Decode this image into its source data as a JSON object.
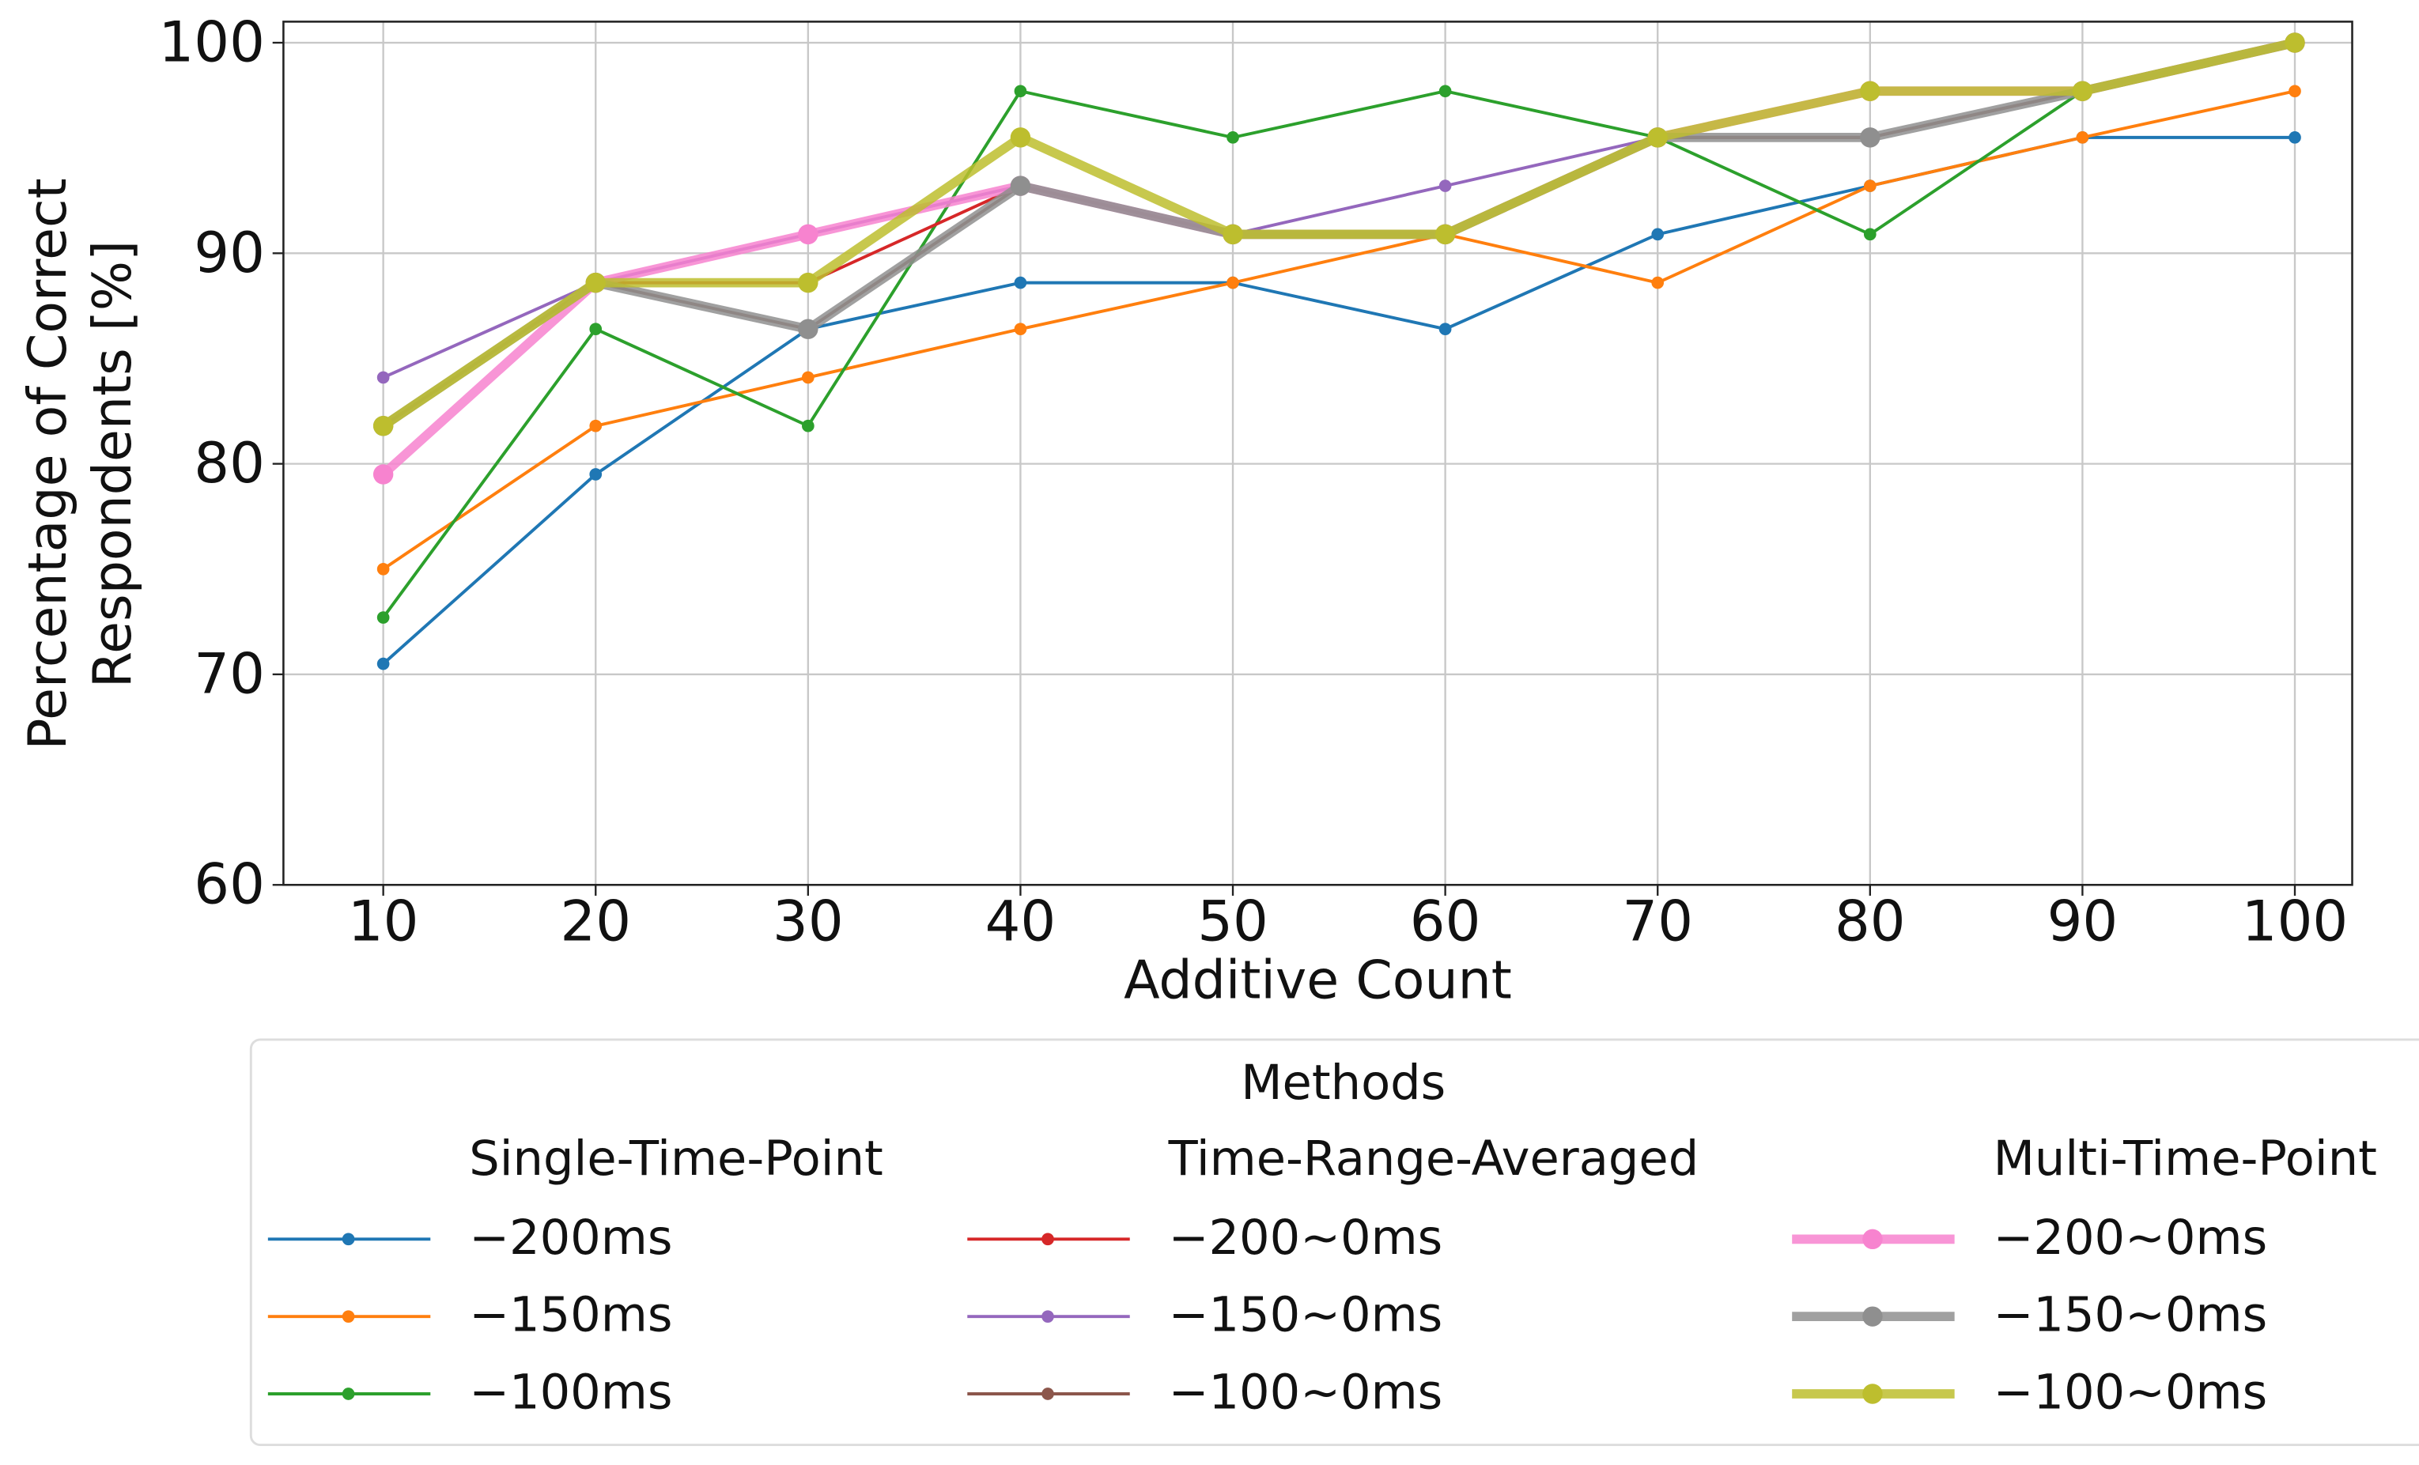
{
  "chart_data": {
    "type": "line",
    "xlabel": "Additive Count",
    "ylabel": [
      "Percentage of Correct",
      "Respondents [%]"
    ],
    "x": [
      10,
      20,
      30,
      40,
      50,
      60,
      70,
      80,
      90,
      100
    ],
    "xlim": [
      5.3,
      102.7
    ],
    "xticks": [
      10,
      20,
      30,
      40,
      50,
      60,
      70,
      80,
      90,
      100
    ],
    "ylim": [
      60,
      101
    ],
    "yticks": [
      60,
      70,
      80,
      90,
      100
    ],
    "grid": true,
    "legend_title": "Methods",
    "legend_columns": [
      "Single-Time-Point",
      "Time-Range-Averaged",
      "Multi-Time-Point"
    ],
    "series": [
      {
        "name": "−200ms",
        "color": "#1f77b4",
        "line_width": 2,
        "values": [
          70.5,
          79.5,
          86.4,
          88.6,
          88.6,
          86.4,
          90.9,
          93.2,
          95.5,
          95.5
        ]
      },
      {
        "name": "−150ms",
        "color": "#ff7f0e",
        "line_width": 2,
        "values": [
          75.0,
          81.8,
          84.1,
          86.4,
          88.6,
          90.9,
          88.6,
          93.2,
          95.5,
          97.7
        ]
      },
      {
        "name": "−100ms",
        "color": "#2ca02c",
        "line_width": 2,
        "values": [
          72.7,
          86.4,
          81.8,
          97.7,
          95.5,
          97.7,
          95.5,
          90.9,
          97.7,
          100
        ]
      },
      {
        "name": "−200~0ms",
        "color": "#d62728",
        "line_width": 2,
        "values": [
          81.8,
          88.6,
          88.6,
          93.2,
          90.9,
          90.9,
          95.5,
          95.5,
          97.7,
          100
        ]
      },
      {
        "name": "−150~0ms",
        "color": "#9467bd",
        "line_width": 2,
        "values": [
          84.1,
          88.6,
          90.9,
          93.2,
          90.9,
          93.2,
          95.5,
          95.5,
          97.7,
          100
        ]
      },
      {
        "name": "−100~0ms",
        "color": "#8c564b",
        "line_width": 2,
        "values": [
          81.8,
          88.6,
          86.4,
          93.2,
          90.9,
          90.9,
          95.5,
          95.5,
          97.7,
          100
        ]
      },
      {
        "name": "−200~0ms",
        "color": "#f783cf",
        "line_width": 6,
        "values": [
          79.5,
          88.6,
          90.9,
          93.2,
          90.9,
          90.9,
          95.5,
          97.7,
          97.7,
          100
        ]
      },
      {
        "name": "−150~0ms",
        "color": "#8f8f8f",
        "line_width": 6,
        "values": [
          81.8,
          88.6,
          86.4,
          93.2,
          90.9,
          90.9,
          95.5,
          95.5,
          97.7,
          100
        ]
      },
      {
        "name": "−100~0ms",
        "color": "#bdbe2e",
        "line_width": 6,
        "values": [
          81.8,
          88.6,
          88.6,
          95.5,
          90.9,
          90.9,
          95.5,
          97.7,
          97.7,
          100
        ]
      }
    ]
  }
}
